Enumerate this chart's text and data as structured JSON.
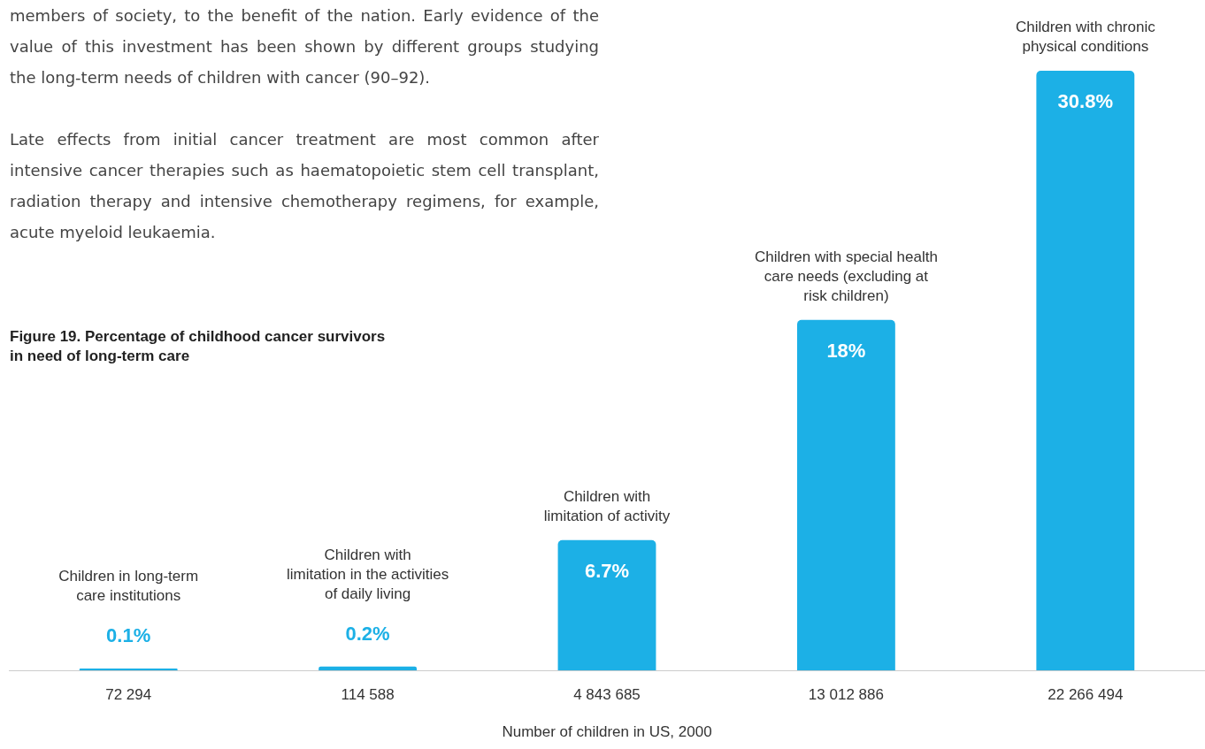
{
  "chart_data": {
    "type": "bar",
    "title": "Figure 19. Percentage of childhood cancer survivors in need of long-term care",
    "xlabel": "Number of children in US, 2000",
    "categories": [
      "72 294",
      "114 588",
      "4 843 685",
      "13 012 886",
      "22 266 494"
    ],
    "values": [
      0.1,
      0.2,
      6.7,
      18,
      30.8
    ],
    "value_labels": [
      "0.1%",
      "0.2%",
      "6.7%",
      "18%",
      "30.8%"
    ],
    "color": "#1cb0e6",
    "annotations": [
      "members of society, to the benefit of the nation. Early evidence of the value of this investment has been shown by different groups studying the long-term needs of children with cancer (90–92).",
      "Late effects from initial cancer treatment are most common after intensive cancer therapies such as haematopoietic stem cell transplant, radiation therapy and intensive chemotherapy regimens, for example, acute myeloid leukaemia.",
      "Children in long-term\ncare institutions",
      "Children with\nlimitation in the activities\nof daily living",
      "Children with\nlimitation of activity",
      "Children with special health\ncare needs (excluding at\nrisk children)",
      "Children with chronic\nphysical conditions"
    ]
  }
}
